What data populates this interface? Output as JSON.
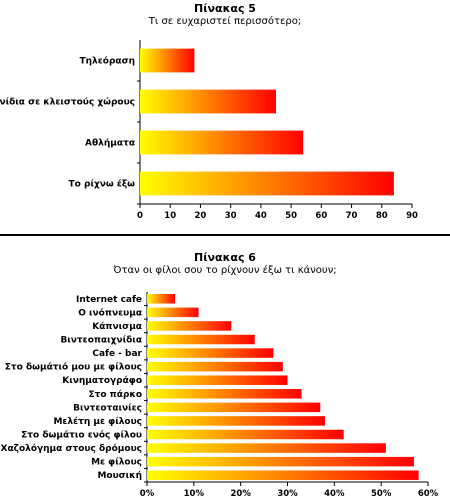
{
  "chart_data": [
    {
      "type": "bar",
      "orientation": "horizontal",
      "title": "Πίνακας 5",
      "subtitle": "Τι σε ευχαριστεί περισσότερο;",
      "categories": [
        "Τηλεόραση",
        "Παιχνίδια σε κλειστούς χώρους",
        "Αθλήματα",
        "Το ρίχνω έξω"
      ],
      "values": [
        18,
        45,
        54,
        84
      ],
      "xlim": [
        0,
        90
      ],
      "xticks": [
        "0",
        "10",
        "20",
        "30",
        "40",
        "50",
        "60",
        "70",
        "80",
        "90"
      ],
      "bar_gradient": [
        "#ffff00",
        "#ff0000"
      ],
      "grid": false
    },
    {
      "type": "bar",
      "orientation": "horizontal",
      "title": "Πίνακας 6",
      "subtitle": "Όταν οι φίλοι σου το ρίχνουν έξω τι κάνουν;",
      "categories": [
        "Internet cafe",
        "Ο ινόπνευμα",
        "Κάπνισμα",
        "Βιντεοπαιχνίδια",
        "Cafe - bar",
        "Στο δωμάτιό μου με φίλους",
        "Κινηματογράφο",
        "Στο πάρκο",
        "Βιντεοταινίες",
        "Μελέτη με φίλους",
        "Στο δωμάτιο ενός φίλου",
        "Χαζολόγημα στους δρόμους",
        "Με φίλους",
        "Μουσική"
      ],
      "values": [
        6,
        11,
        18,
        23,
        27,
        29,
        30,
        33,
        37,
        38,
        42,
        51,
        57,
        58
      ],
      "xlim": [
        0,
        60
      ],
      "xticks": [
        "0%",
        "10%",
        "20%",
        "30%",
        "40%",
        "50%",
        "60%"
      ],
      "bar_gradient": [
        "#ffff00",
        "#ff0000"
      ],
      "grid": false
    }
  ]
}
